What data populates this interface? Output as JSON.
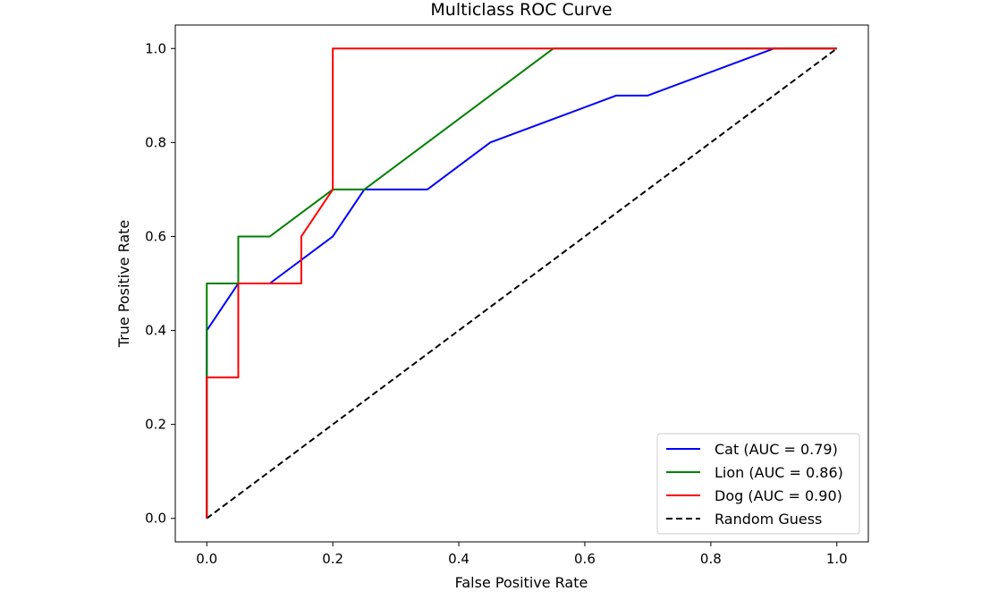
{
  "chart_data": {
    "type": "line",
    "title": "Multiclass ROC Curve",
    "xlabel": "False Positive Rate",
    "ylabel": "True Positive Rate",
    "xlim": [
      -0.05,
      1.05
    ],
    "ylim": [
      -0.05,
      1.05
    ],
    "xticks": [
      "0.0",
      "0.2",
      "0.4",
      "0.6",
      "0.8",
      "1.0"
    ],
    "yticks": [
      "0.0",
      "0.2",
      "0.4",
      "0.6",
      "0.8",
      "1.0"
    ],
    "grid": false,
    "legend_position": "lower-right",
    "series": [
      {
        "name": "Cat (AUC = 0.79)",
        "color": "#0000ff",
        "style": "solid",
        "x": [
          0,
          0,
          0.05,
          0.1,
          0.2,
          0.25,
          0.35,
          0.45,
          0.65,
          0.7,
          0.9,
          1.0
        ],
        "y": [
          0,
          0.4,
          0.5,
          0.5,
          0.6,
          0.7,
          0.7,
          0.8,
          0.9,
          0.9,
          1.0,
          1.0
        ]
      },
      {
        "name": "Lion (AUC = 0.86)",
        "color": "#008000",
        "style": "solid",
        "x": [
          0,
          0,
          0,
          0.05,
          0.05,
          0.1,
          0.2,
          0.25,
          0.55,
          1.0
        ],
        "y": [
          0,
          0.3,
          0.5,
          0.5,
          0.6,
          0.6,
          0.7,
          0.7,
          1.0,
          1.0
        ]
      },
      {
        "name": "Dog (AUC = 0.90)",
        "color": "#ff0000",
        "style": "solid",
        "x": [
          0,
          0,
          0.05,
          0.05,
          0.15,
          0.15,
          0.2,
          0.2,
          1.0
        ],
        "y": [
          0,
          0.3,
          0.3,
          0.5,
          0.5,
          0.6,
          0.7,
          1.0,
          1.0
        ]
      },
      {
        "name": "Random Guess",
        "color": "#000000",
        "style": "dashed",
        "x": [
          0,
          1
        ],
        "y": [
          0,
          1
        ]
      }
    ]
  }
}
